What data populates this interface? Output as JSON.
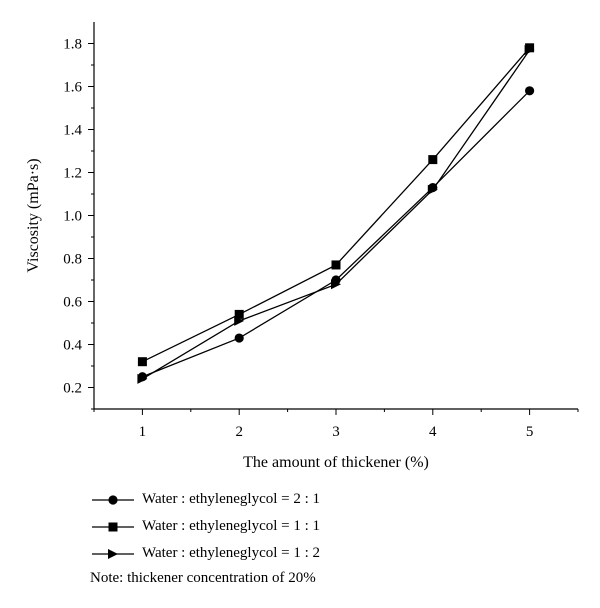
{
  "chart_data": {
    "type": "line",
    "xlabel": "The amount of thickener (%)",
    "ylabel": "Viscosity (mPa·s)",
    "x": [
      1,
      2,
      3,
      4,
      5
    ],
    "xlim": [
      0.5,
      5.5
    ],
    "ylim": [
      0.1,
      1.9
    ],
    "xticks": [
      "1",
      "2",
      "3",
      "4",
      "5"
    ],
    "yticks": [
      "0.2",
      "0.4",
      "0.6",
      "0.8",
      "1.0",
      "1.2",
      "1.4",
      "1.6",
      "1.8"
    ],
    "grid": false,
    "legend_position": "below",
    "series": [
      {
        "name": "Water : ethyleneglycol = 2 : 1",
        "marker": "circle",
        "values": [
          0.25,
          0.43,
          0.7,
          1.13,
          1.58
        ]
      },
      {
        "name": "Water : ethyleneglycol = 1 : 1",
        "marker": "square",
        "values": [
          0.32,
          0.54,
          0.77,
          1.26,
          1.78
        ]
      },
      {
        "name": "Water : ethyleneglycol = 1 : 2",
        "marker": "triangle",
        "values": [
          0.24,
          0.51,
          0.68,
          1.12,
          1.77
        ]
      }
    ],
    "note": "Note: thickener concentration of 20%"
  }
}
